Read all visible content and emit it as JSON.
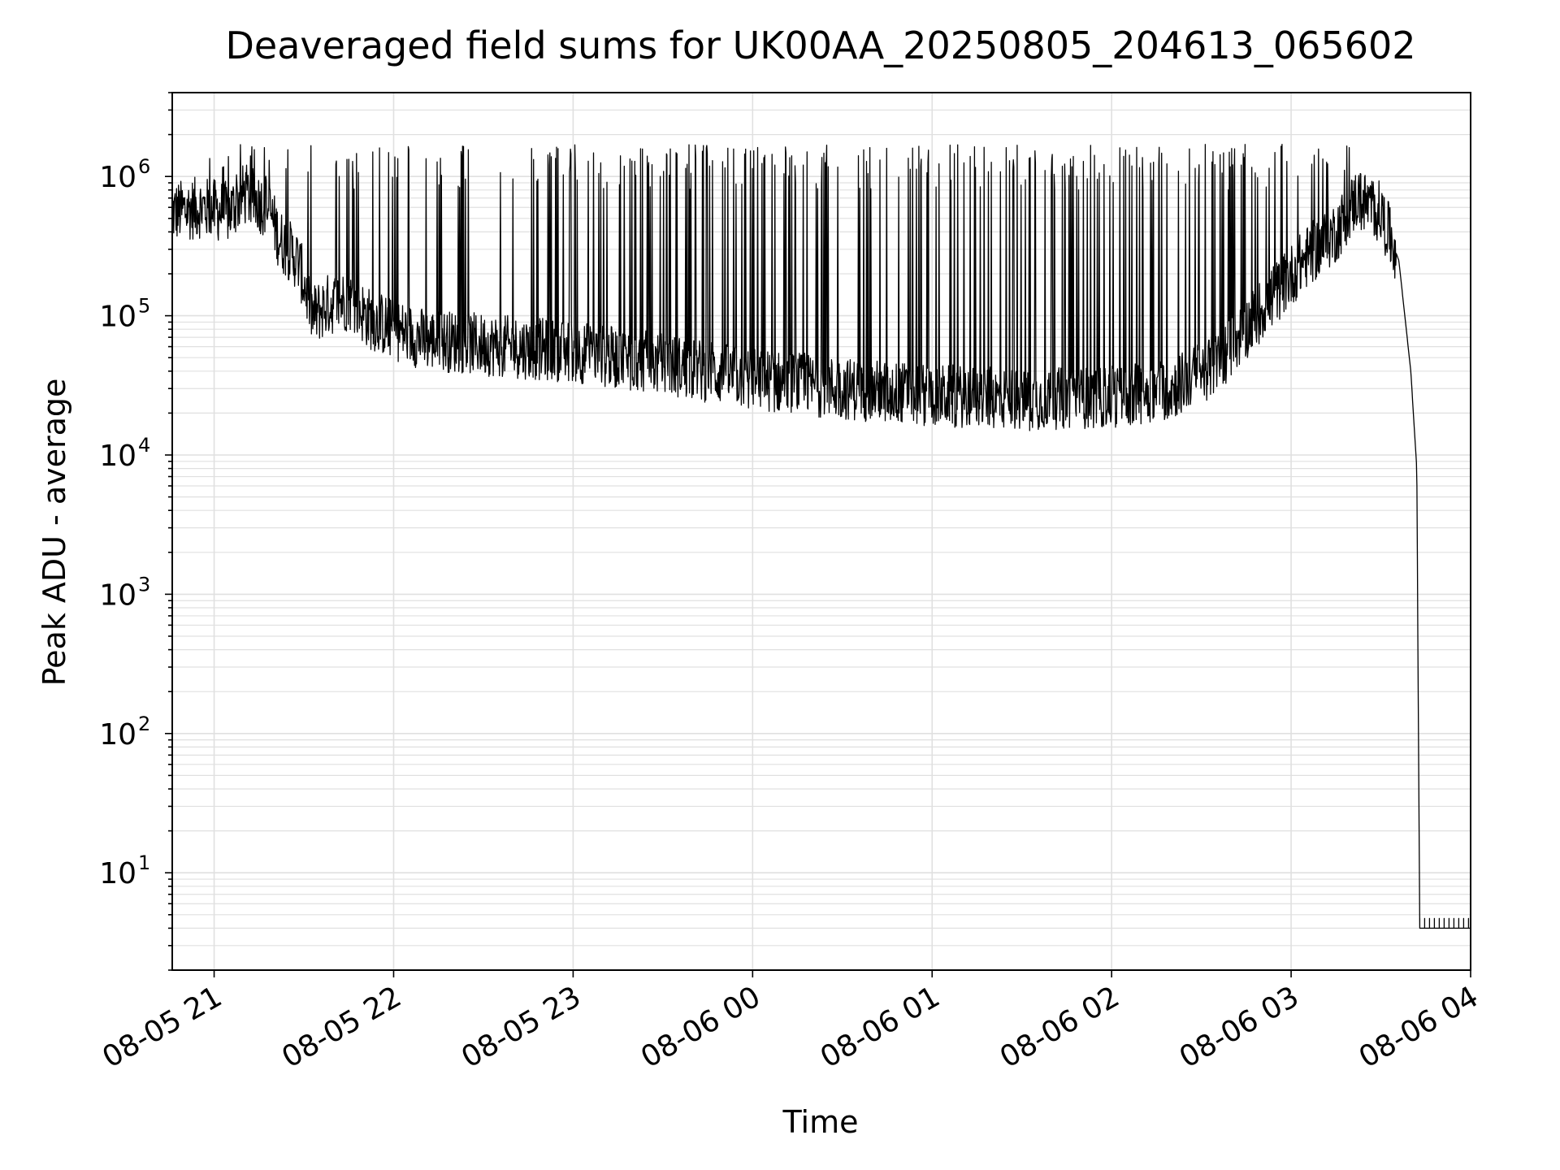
{
  "chart_data": {
    "type": "line",
    "title": "Deaveraged field sums for UK00AA_20250805_204613_065602",
    "xlabel": "Time",
    "ylabel": "Peak ADU - average",
    "y_scale": "log",
    "ylim": [
      2,
      4000000.0
    ],
    "xlim": [
      "2025-08-05 20:46",
      "2025-08-06 04:00"
    ],
    "grid": true,
    "line_color": "#000000",
    "grid_color": "#e0e0e0",
    "x_ticks": [
      {
        "value": "2025-08-05 21:00",
        "label": "08-05 21"
      },
      {
        "value": "2025-08-05 22:00",
        "label": "08-05 22"
      },
      {
        "value": "2025-08-05 23:00",
        "label": "08-05 23"
      },
      {
        "value": "2025-08-06 00:00",
        "label": "08-06 00"
      },
      {
        "value": "2025-08-06 01:00",
        "label": "08-06 01"
      },
      {
        "value": "2025-08-06 02:00",
        "label": "08-06 02"
      },
      {
        "value": "2025-08-06 03:00",
        "label": "08-06 03"
      },
      {
        "value": "2025-08-06 04:00",
        "label": "08-06 04"
      }
    ],
    "y_ticks": [
      {
        "value": 10,
        "base": "10",
        "exp": "1"
      },
      {
        "value": 100,
        "base": "10",
        "exp": "2"
      },
      {
        "value": 1000,
        "base": "10",
        "exp": "3"
      },
      {
        "value": 10000,
        "base": "10",
        "exp": "4"
      },
      {
        "value": 100000,
        "base": "10",
        "exp": "5"
      },
      {
        "value": 1000000,
        "base": "10",
        "exp": "6"
      }
    ],
    "series": [
      {
        "baseline": [
          {
            "x": "2025-08-05 20:46",
            "y": 550000
          },
          {
            "x": "2025-08-05 20:55",
            "y": 600000
          },
          {
            "x": "2025-08-05 21:05",
            "y": 550000
          },
          {
            "x": "2025-08-05 21:10",
            "y": 750000
          },
          {
            "x": "2025-08-05 21:18",
            "y": 600000
          },
          {
            "x": "2025-08-05 21:22",
            "y": 350000
          },
          {
            "x": "2025-08-05 21:28",
            "y": 250000
          },
          {
            "x": "2025-08-05 21:33",
            "y": 100000
          },
          {
            "x": "2025-08-05 21:38",
            "y": 120000
          },
          {
            "x": "2025-08-05 21:45",
            "y": 130000
          },
          {
            "x": "2025-08-05 21:52",
            "y": 95000
          },
          {
            "x": "2025-08-05 22:00",
            "y": 80000
          },
          {
            "x": "2025-08-05 22:10",
            "y": 68000
          },
          {
            "x": "2025-08-05 22:30",
            "y": 62000
          },
          {
            "x": "2025-08-05 23:00",
            "y": 55000
          },
          {
            "x": "2025-08-05 23:30",
            "y": 45000
          },
          {
            "x": "2025-08-06 00:00",
            "y": 35000
          },
          {
            "x": "2025-08-06 00:30",
            "y": 30000
          },
          {
            "x": "2025-08-06 01:00",
            "y": 27000
          },
          {
            "x": "2025-08-06 01:30",
            "y": 25000
          },
          {
            "x": "2025-08-06 02:00",
            "y": 26000
          },
          {
            "x": "2025-08-06 02:20",
            "y": 30000
          },
          {
            "x": "2025-08-06 02:35",
            "y": 45000
          },
          {
            "x": "2025-08-06 02:50",
            "y": 110000
          },
          {
            "x": "2025-08-06 03:05",
            "y": 260000
          },
          {
            "x": "2025-08-06 03:15",
            "y": 400000
          },
          {
            "x": "2025-08-06 03:22",
            "y": 700000
          },
          {
            "x": "2025-08-06 03:30",
            "y": 550000
          },
          {
            "x": "2025-08-06 03:36",
            "y": 250000
          },
          {
            "x": "2025-08-06 03:40",
            "y": 40000
          },
          {
            "x": "2025-08-06 03:42",
            "y": 8000
          },
          {
            "x": "2025-08-06 03:43",
            "y": 4
          },
          {
            "x": "2025-08-06 04:00",
            "y": 4
          }
        ],
        "spike_max": 2100000
      }
    ]
  }
}
